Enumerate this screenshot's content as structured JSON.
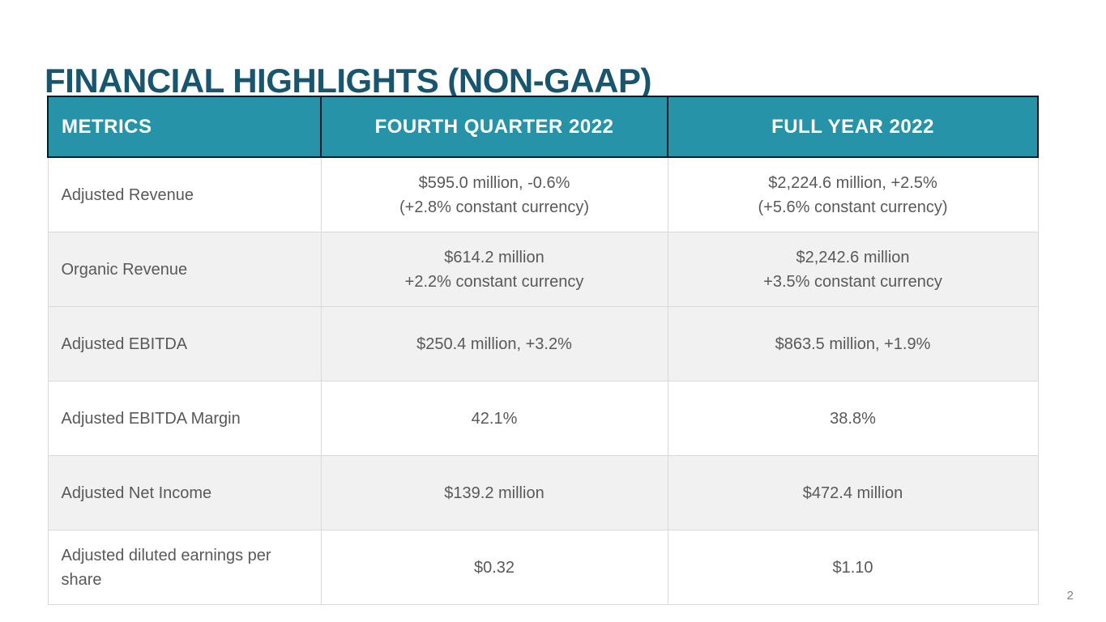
{
  "slide": {
    "title": "FINANCIAL HIGHLIGHTS (NON-GAAP)",
    "page_number": "2"
  },
  "colors": {
    "title_text": "#17566e",
    "header_bg": "#2793a9",
    "header_text": "#ffffff",
    "header_border": "#0b1a24",
    "body_text": "#595959",
    "body_border": "#d9d9d9",
    "shaded_row_bg": "#f1f1f1"
  },
  "table": {
    "columns": [
      "METRICS",
      "FOURTH QUARTER 2022",
      "FULL YEAR 2022"
    ],
    "rows": [
      {
        "metric": "Adjusted Revenue",
        "q4_2022": "$595.0 million, -0.6%\n(+2.8% constant currency)",
        "fy_2022": "$2,224.6 million, +2.5%\n(+5.6% constant currency)",
        "shaded": false
      },
      {
        "metric": "Organic Revenue",
        "q4_2022": "$614.2 million\n+2.2% constant currency",
        "fy_2022": "$2,242.6 million\n+3.5% constant currency",
        "shaded": true
      },
      {
        "metric": "Adjusted EBITDA",
        "q4_2022": "$250.4 million, +3.2%",
        "fy_2022": "$863.5 million, +1.9%",
        "shaded": true
      },
      {
        "metric": "Adjusted EBITDA Margin",
        "q4_2022": "42.1%",
        "fy_2022": "38.8%",
        "shaded": false
      },
      {
        "metric": "Adjusted Net Income",
        "q4_2022": "$139.2 million",
        "fy_2022": "$472.4 million",
        "shaded": true
      },
      {
        "metric": "Adjusted diluted earnings per share",
        "q4_2022": "$0.32",
        "fy_2022": "$1.10",
        "shaded": false
      }
    ]
  }
}
